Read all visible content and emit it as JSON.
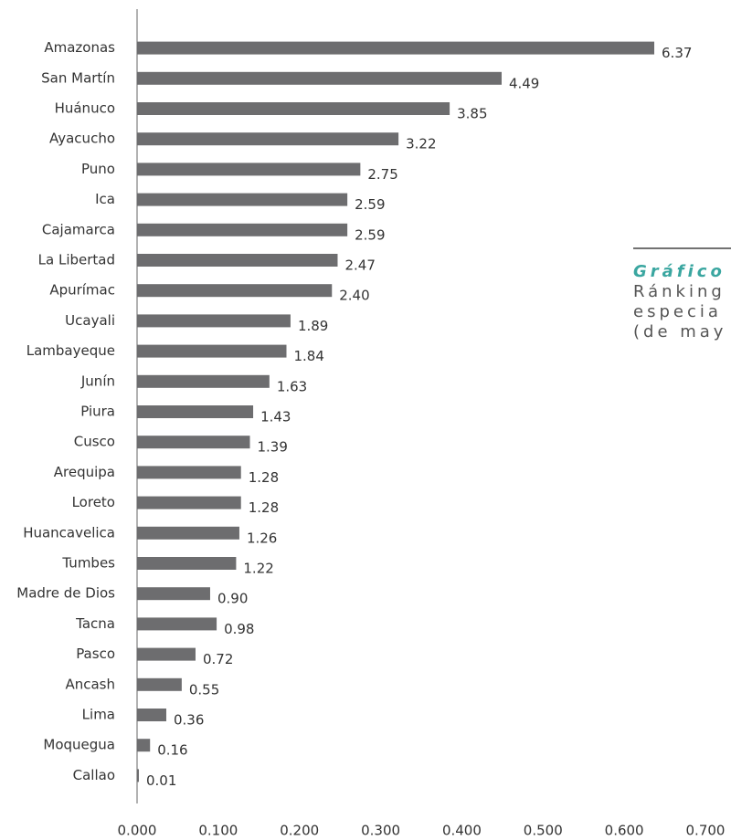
{
  "chart_data": {
    "type": "hbar",
    "title": "Gráfico",
    "subtitle": [
      "Ránking",
      "especia",
      "(de may"
    ],
    "categories": [
      "Amazonas",
      "San Martín",
      "Huánuco",
      "Ayacucho",
      "Puno",
      "Ica",
      "Cajamarca",
      "La Libertad",
      "Apurímac",
      "Ucayali",
      "Lambayeque",
      "Junín",
      "Piura",
      "Cusco",
      "Arequipa",
      "Loreto",
      "Huancavelica",
      "Tumbes",
      "Madre de Dios",
      "Tacna",
      "Pasco",
      "Ancash",
      "Lima",
      "Moquegua",
      "Callao"
    ],
    "values": [
      0.637,
      0.449,
      0.385,
      0.322,
      0.275,
      0.259,
      0.259,
      0.247,
      0.24,
      0.189,
      0.184,
      0.163,
      0.143,
      0.139,
      0.128,
      0.128,
      0.126,
      0.122,
      0.09,
      0.098,
      0.072,
      0.055,
      0.036,
      0.016,
      0.001
    ],
    "value_labels": [
      "6.37",
      "4.49",
      "3.85",
      "3.22",
      "2.75",
      "2.59",
      "2.59",
      "2.47",
      "2.40",
      "1.89",
      "1.84",
      "1.63",
      "1.43",
      "1.39",
      "1.28",
      "1.28",
      "1.26",
      "1.22",
      "0.90",
      "0.98",
      "0.72",
      "0.55",
      "0.36",
      "0.16",
      "0.01"
    ],
    "color": "#6d6d6f",
    "xlim": [
      0,
      0.7
    ],
    "xticks": [
      {
        "value": 0,
        "label": "0.000"
      },
      {
        "value": 0.1,
        "label": "0.100"
      },
      {
        "value": 0.2,
        "label": "0.200"
      },
      {
        "value": 0.3,
        "label": "0.300"
      },
      {
        "value": 0.4,
        "label": "0.400"
      },
      {
        "value": 0.5,
        "label": "0.500"
      },
      {
        "value": 0.6,
        "label": "0.600"
      },
      {
        "value": 0.7,
        "label": "0.700"
      }
    ]
  }
}
